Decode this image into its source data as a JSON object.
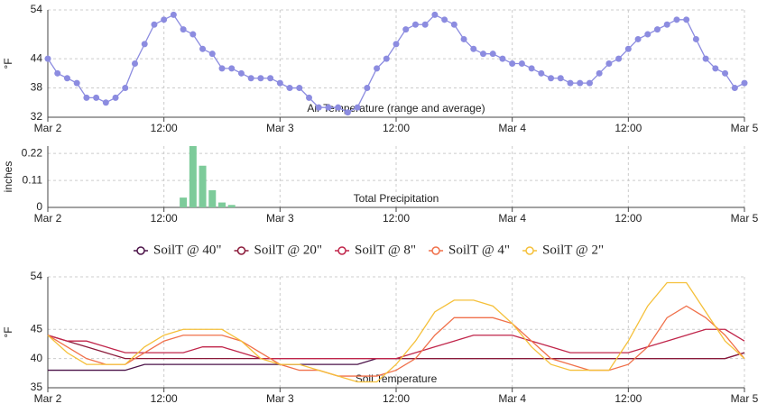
{
  "chart_data": [
    {
      "type": "line",
      "title": "Air Temperature (range and average)",
      "y_label": "°F",
      "markers": true,
      "grid": true,
      "x": [
        0,
        1,
        2,
        3,
        4,
        5,
        6,
        7,
        8,
        9,
        10,
        11,
        12,
        13,
        14,
        15,
        16,
        17,
        18,
        19,
        20,
        21,
        22,
        23,
        24,
        25,
        26,
        27,
        28,
        29,
        30,
        31,
        32,
        33,
        34,
        35,
        36,
        37,
        38,
        39,
        40,
        41,
        42,
        43,
        44,
        45,
        46,
        47,
        48,
        49,
        50,
        51,
        52,
        53,
        54,
        55,
        56,
        57,
        58,
        59,
        60,
        61,
        62,
        63,
        64,
        65,
        66,
        67,
        68,
        69,
        70,
        71,
        72
      ],
      "series": [
        {
          "name": "Air Temperature",
          "color": "#8c8ce0",
          "values": [
            44,
            41,
            40,
            39,
            36,
            36,
            35,
            36,
            38,
            43,
            47,
            51,
            52,
            53,
            50,
            49,
            46,
            45,
            42,
            42,
            41,
            40,
            40,
            40,
            39,
            38,
            38,
            36,
            34,
            34,
            34,
            33,
            34,
            38,
            42,
            44,
            47,
            50,
            51,
            51,
            53,
            52,
            51,
            48,
            46,
            45,
            45,
            44,
            43,
            43,
            42,
            41,
            40,
            40,
            39,
            39,
            39,
            41,
            43,
            44,
            46,
            48,
            49,
            50,
            51,
            52,
            52,
            48,
            44,
            42,
            41,
            38,
            39
          ]
        }
      ],
      "xlim": [
        0,
        72
      ],
      "xticks": [
        {
          "value": 0,
          "label": "Mar 2"
        },
        {
          "value": 12,
          "label": "12:00"
        },
        {
          "value": 24,
          "label": "Mar 3"
        },
        {
          "value": 36,
          "label": "12:00"
        },
        {
          "value": 48,
          "label": "Mar 4"
        },
        {
          "value": 60,
          "label": "12:00"
        },
        {
          "value": 72,
          "label": "Mar 5"
        }
      ],
      "ylim": [
        32,
        54
      ],
      "yticks": [
        32,
        38,
        44,
        54
      ]
    },
    {
      "type": "bar",
      "title": "Total Precipitation",
      "y_label": "inches",
      "grid": true,
      "x": [
        14,
        15,
        16,
        17,
        18,
        19
      ],
      "series": [
        {
          "name": "Precipitation",
          "color": "#7dcb9a",
          "values": [
            0.04,
            0.25,
            0.17,
            0.07,
            0.02,
            0.01
          ]
        }
      ],
      "xlim": [
        0,
        72
      ],
      "xticks": [
        {
          "value": 0,
          "label": "Mar 2"
        },
        {
          "value": 12,
          "label": "12:00"
        },
        {
          "value": 24,
          "label": "Mar 3"
        },
        {
          "value": 36,
          "label": "12:00"
        },
        {
          "value": 48,
          "label": "Mar 4"
        },
        {
          "value": 60,
          "label": "12:00"
        },
        {
          "value": 72,
          "label": "Mar 5"
        }
      ],
      "ylim": [
        0,
        0.25
      ],
      "yticks": [
        0,
        0.11,
        0.22
      ]
    },
    {
      "type": "line",
      "title": "Soil Temperature",
      "y_label": "°F",
      "markers": false,
      "grid": true,
      "legend": "top",
      "x": [
        0,
        2,
        4,
        6,
        8,
        10,
        12,
        14,
        16,
        18,
        20,
        22,
        24,
        26,
        28,
        30,
        32,
        34,
        36,
        38,
        40,
        42,
        44,
        46,
        48,
        50,
        52,
        54,
        56,
        58,
        60,
        62,
        64,
        66,
        68,
        70,
        72
      ],
      "series": [
        {
          "name": "SoilT @ 40\"",
          "color": "#4b1248",
          "values": [
            38,
            38,
            38,
            38,
            38,
            39,
            39,
            39,
            39,
            39,
            39,
            39,
            39,
            39,
            39,
            39,
            39,
            40,
            40,
            40,
            40,
            40,
            40,
            40,
            40,
            40,
            40,
            40,
            40,
            40,
            40,
            40,
            40,
            40,
            40,
            40,
            41
          ]
        },
        {
          "name": "SoilT @ 20\"",
          "color": "#8b1a3a",
          "values": [
            44,
            43,
            42,
            41,
            40,
            40,
            40,
            40,
            40,
            40,
            40,
            40,
            40,
            40,
            40,
            40,
            40,
            40,
            40,
            40,
            40,
            40,
            40,
            40,
            40,
            40,
            40,
            40,
            40,
            40,
            40,
            40,
            40,
            40,
            40,
            40,
            41
          ]
        },
        {
          "name": "SoilT @ 8\"",
          "color": "#c0254a",
          "values": [
            44,
            43,
            43,
            42,
            41,
            41,
            41,
            41,
            42,
            42,
            41,
            40,
            40,
            40,
            40,
            40,
            40,
            40,
            40,
            41,
            42,
            43,
            44,
            44,
            44,
            43,
            42,
            41,
            41,
            41,
            41,
            42,
            43,
            44,
            45,
            45,
            43
          ]
        },
        {
          "name": "SoilT @ 4\"",
          "color": "#f0704a",
          "values": [
            44,
            42,
            40,
            39,
            39,
            41,
            43,
            44,
            44,
            44,
            43,
            41,
            39,
            38,
            38,
            37,
            37,
            37,
            38,
            40,
            44,
            47,
            47,
            47,
            46,
            43,
            40,
            39,
            38,
            38,
            39,
            42,
            47,
            49,
            47,
            44,
            40
          ]
        },
        {
          "name": "SoilT @ 2\"",
          "color": "#f5c03a",
          "values": [
            44,
            41,
            39,
            39,
            39,
            42,
            44,
            45,
            45,
            45,
            43,
            40,
            39,
            39,
            38,
            37,
            36,
            36,
            39,
            43,
            48,
            50,
            50,
            49,
            46,
            42,
            39,
            38,
            38,
            38,
            43,
            49,
            53,
            53,
            48,
            43,
            40
          ]
        }
      ],
      "xlim": [
        0,
        72
      ],
      "xticks": [
        {
          "value": 0,
          "label": "Mar 2"
        },
        {
          "value": 12,
          "label": "12:00"
        },
        {
          "value": 24,
          "label": "Mar 3"
        },
        {
          "value": 36,
          "label": "12:00"
        },
        {
          "value": 48,
          "label": "Mar 4"
        },
        {
          "value": 60,
          "label": "12:00"
        },
        {
          "value": 72,
          "label": "Mar 5"
        }
      ],
      "ylim": [
        35,
        54
      ],
      "yticks": [
        35,
        40,
        45,
        54
      ]
    }
  ]
}
